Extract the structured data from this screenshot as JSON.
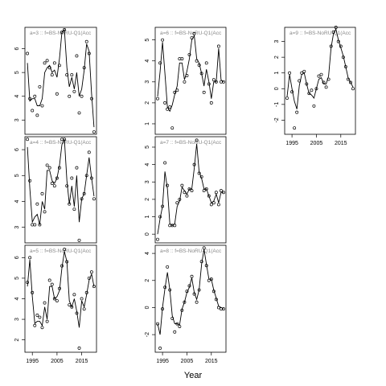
{
  "figure": {
    "xlabel": "Year",
    "x_tick_labels": [
      "1995",
      "2005",
      "2015"
    ]
  },
  "chart_data": [
    {
      "type": "line",
      "panel": "a3",
      "title": "a=3 :: f=BS-NoRU-Q1(Acc",
      "xlim": [
        1992,
        2021
      ],
      "ylim": [
        2.4,
        6.9
      ],
      "yticks": [
        3,
        4,
        5,
        6
      ],
      "x": [
        1993,
        1994,
        1995,
        1996,
        1997,
        1998,
        1999,
        2000,
        2001,
        2002,
        2003,
        2004,
        2005,
        2006,
        2007,
        2008,
        2009,
        2010,
        2011,
        2012,
        2013,
        2014,
        2015,
        2016,
        2017,
        2018,
        2019,
        2020
      ],
      "points": [
        5.8,
        3.9,
        3.4,
        4.0,
        3.2,
        4.4,
        3.6,
        5.4,
        5.5,
        5.2,
        4.9,
        5.4,
        4.1,
        5.3,
        6.7,
        6.8,
        4.9,
        4.0,
        4.9,
        4.2,
        5.7,
        3.3,
        4.0,
        5.2,
        6.3,
        5.8,
        3.9,
        2.5
      ],
      "line": [
        5.4,
        3.8,
        3.9,
        3.9,
        3.6,
        3.6,
        3.9,
        5.0,
        5.2,
        5.3,
        5.0,
        5.1,
        4.8,
        5.6,
        6.7,
        6.8,
        5.2,
        4.4,
        4.8,
        4.3,
        5.0,
        4.0,
        4.3,
        5.1,
        6.2,
        5.9,
        4.1,
        2.7
      ]
    },
    {
      "type": "line",
      "panel": "a6",
      "title": "a=6 :: f=BS-NoRU-Q1(Acc",
      "xlim": [
        1992,
        2021
      ],
      "ylim": [
        0.5,
        5.6
      ],
      "yticks": [
        1,
        2,
        3,
        4,
        5
      ],
      "x": [
        1993,
        1994,
        1995,
        1996,
        1997,
        1998,
        1999,
        2000,
        2001,
        2002,
        2003,
        2004,
        2005,
        2006,
        2007,
        2008,
        2009,
        2010,
        2011,
        2012,
        2013,
        2014,
        2015,
        2016,
        2017,
        2018,
        2019,
        2020
      ],
      "points": [
        2.2,
        3.9,
        5.0,
        2.0,
        1.7,
        1.8,
        0.8,
        2.5,
        2.6,
        4.1,
        4.1,
        3.0,
        3.3,
        4.3,
        5.1,
        5.3,
        4.0,
        3.8,
        3.4,
        2.5,
        3.9,
        2.9,
        2.0,
        3.1,
        3.0,
        4.7,
        3.0,
        3.0
      ],
      "line": [
        2.3,
        3.5,
        4.9,
        3.4,
        1.8,
        1.6,
        1.9,
        2.4,
        2.8,
        3.9,
        3.9,
        3.1,
        3.5,
        4.1,
        5.0,
        5.2,
        4.1,
        3.9,
        3.4,
        2.8,
        3.6,
        3.0,
        2.2,
        3.0,
        3.0,
        4.6,
        3.1,
        3.0
      ]
    },
    {
      "type": "line",
      "panel": "a9",
      "title": "a=9 :: f=BS-NoRU-Q1(Acc",
      "xlim": [
        1992,
        2021
      ],
      "ylim": [
        -2.9,
        3.9
      ],
      "yticks": [
        -2,
        -1,
        0,
        1,
        2,
        3
      ],
      "x": [
        1993,
        1994,
        1995,
        1996,
        1997,
        1998,
        1999,
        2000,
        2001,
        2002,
        2003,
        2004,
        2005,
        2006,
        2007,
        2008,
        2009,
        2010,
        2011,
        2012,
        2013,
        2014,
        2015,
        2016,
        2017,
        2018,
        2019,
        2020
      ],
      "points": [
        -0.6,
        1.0,
        -0.2,
        -2.5,
        -1.5,
        0.5,
        1.0,
        1.1,
        0.3,
        -0.3,
        -0.1,
        -1.1,
        0.0,
        0.8,
        0.9,
        0.4,
        0.1,
        0.6,
        2.7,
        3.6,
        3.9,
        3.0,
        2.7,
        2.0,
        1.4,
        0.6,
        0.4,
        0.0
      ],
      "line": [
        -0.5,
        0.9,
        0.0,
        -0.8,
        -1.3,
        0.2,
        0.9,
        1.0,
        0.3,
        -0.3,
        -0.4,
        -0.6,
        0.0,
        0.6,
        0.7,
        0.3,
        0.3,
        0.8,
        2.6,
        3.5,
        3.8,
        3.1,
        2.6,
        2.1,
        1.4,
        0.7,
        0.4,
        0.1
      ]
    },
    {
      "type": "line",
      "panel": "a4",
      "title": "a=4 :: f=BS-NoRU-Q1(Acc",
      "xlim": [
        1992,
        2021
      ],
      "ylim": [
        2.4,
        6.5
      ],
      "yticks": [
        3,
        4,
        5,
        6
      ],
      "x": [
        1993,
        1994,
        1995,
        1996,
        1997,
        1998,
        1999,
        2000,
        2001,
        2002,
        2003,
        2004,
        2005,
        2006,
        2007,
        2008,
        2009,
        2010,
        2011,
        2012,
        2013,
        2014,
        2015,
        2016,
        2017,
        2018,
        2019,
        2020
      ],
      "points": [
        6.4,
        4.8,
        3.1,
        3.1,
        3.9,
        3.1,
        4.3,
        3.6,
        5.4,
        5.3,
        4.7,
        4.6,
        4.9,
        5.3,
        6.4,
        6.4,
        4.6,
        3.9,
        4.9,
        3.7,
        5.3,
        2.5,
        4.1,
        4.3,
        5.0,
        5.9,
        4.9,
        4.1
      ],
      "line": [
        6.1,
        4.5,
        3.2,
        3.4,
        3.5,
        3.1,
        4.0,
        3.7,
        5.2,
        5.2,
        4.8,
        4.7,
        4.9,
        5.4,
        6.2,
        6.4,
        4.8,
        3.9,
        4.6,
        3.8,
        5.0,
        3.2,
        4.1,
        4.3,
        5.0,
        5.7,
        4.9,
        4.2
      ]
    },
    {
      "type": "line",
      "panel": "a7",
      "title": "a=7 :: f=BS-NoRU-Q1(Acc",
      "xlim": [
        1992,
        2021
      ],
      "ylim": [
        -0.5,
        5.6
      ],
      "yticks": [
        0,
        1,
        2,
        3,
        4,
        5
      ],
      "x": [
        1993,
        1994,
        1995,
        1996,
        1997,
        1998,
        1999,
        2000,
        2001,
        2002,
        2003,
        2004,
        2005,
        2006,
        2007,
        2008,
        2009,
        2010,
        2011,
        2012,
        2013,
        2014,
        2015,
        2016,
        2017,
        2018,
        2019,
        2020
      ],
      "points": [
        -0.3,
        1.0,
        1.6,
        4.1,
        2.8,
        0.5,
        0.5,
        0.5,
        1.8,
        2.0,
        2.8,
        2.4,
        2.2,
        2.6,
        2.5,
        4.0,
        5.4,
        3.5,
        3.3,
        2.5,
        2.6,
        2.2,
        1.7,
        1.8,
        2.4,
        1.7,
        2.5,
        2.4
      ],
      "line": [
        0.0,
        0.9,
        1.6,
        3.6,
        2.6,
        0.6,
        0.5,
        0.6,
        1.6,
        1.9,
        2.7,
        2.5,
        2.3,
        2.6,
        2.6,
        3.8,
        5.2,
        3.6,
        3.2,
        2.6,
        2.6,
        2.2,
        1.8,
        1.9,
        2.3,
        1.8,
        2.4,
        2.4
      ]
    },
    {
      "type": "line",
      "panel": "a5",
      "title": "a=5 :: f=BS-NoRU-Q1(Acc",
      "xlim": [
        1992,
        2021
      ],
      "ylim": [
        1.4,
        6.6
      ],
      "yticks": [
        2,
        3,
        4,
        5,
        6
      ],
      "x": [
        1993,
        1994,
        1995,
        1996,
        1997,
        1998,
        1999,
        2000,
        2001,
        2002,
        2003,
        2004,
        2005,
        2006,
        2007,
        2008,
        2009,
        2010,
        2011,
        2012,
        2013,
        2014,
        2015,
        2016,
        2017,
        2018,
        2019,
        2020
      ],
      "points": [
        4.8,
        6.0,
        4.3,
        2.7,
        3.2,
        3.1,
        2.6,
        3.8,
        2.9,
        4.9,
        4.7,
        4.0,
        3.9,
        4.5,
        5.6,
        6.4,
        5.8,
        3.7,
        3.6,
        4.2,
        3.3,
        1.6,
        4.0,
        3.5,
        4.3,
        5.0,
        5.3,
        4.6
      ],
      "line": [
        4.6,
        5.9,
        4.1,
        2.8,
        2.9,
        2.9,
        2.7,
        3.6,
        3.0,
        4.6,
        4.6,
        4.0,
        4.1,
        4.4,
        5.5,
        6.3,
        5.8,
        3.9,
        3.6,
        4.0,
        3.4,
        2.6,
        3.9,
        3.6,
        4.2,
        4.9,
        5.2,
        4.6
      ]
    },
    {
      "type": "line",
      "panel": "a8",
      "title": "a=8 :: f=BS-NoRU-Q1(Acc",
      "xlim": [
        1992,
        2021
      ],
      "ylim": [
        -3.3,
        4.6
      ],
      "yticks": [
        -2,
        0,
        2,
        4
      ],
      "x": [
        1993,
        1994,
        1995,
        1996,
        1997,
        1998,
        1999,
        2000,
        2001,
        2002,
        2003,
        2004,
        2005,
        2006,
        2007,
        2008,
        2009,
        2010,
        2011,
        2012,
        2013,
        2014,
        2015,
        2016,
        2017,
        2018,
        2019,
        2020
      ],
      "points": [
        -1.2,
        -3.0,
        -0.1,
        1.5,
        3.0,
        1.3,
        -0.8,
        -1.8,
        -1.2,
        -1.4,
        -0.2,
        0.4,
        1.2,
        1.6,
        2.3,
        1.0,
        0.4,
        1.3,
        3.4,
        4.4,
        3.1,
        2.0,
        2.1,
        1.2,
        0.6,
        0.0,
        -0.1,
        -0.1
      ],
      "line": [
        -1.2,
        -2.0,
        0.0,
        1.4,
        2.6,
        1.3,
        -0.6,
        -1.2,
        -1.2,
        -1.3,
        -0.1,
        0.4,
        1.1,
        1.5,
        2.2,
        1.1,
        0.6,
        1.3,
        3.2,
        4.3,
        3.2,
        2.1,
        2.1,
        1.3,
        0.7,
        0.1,
        0.0,
        -0.1
      ]
    }
  ]
}
